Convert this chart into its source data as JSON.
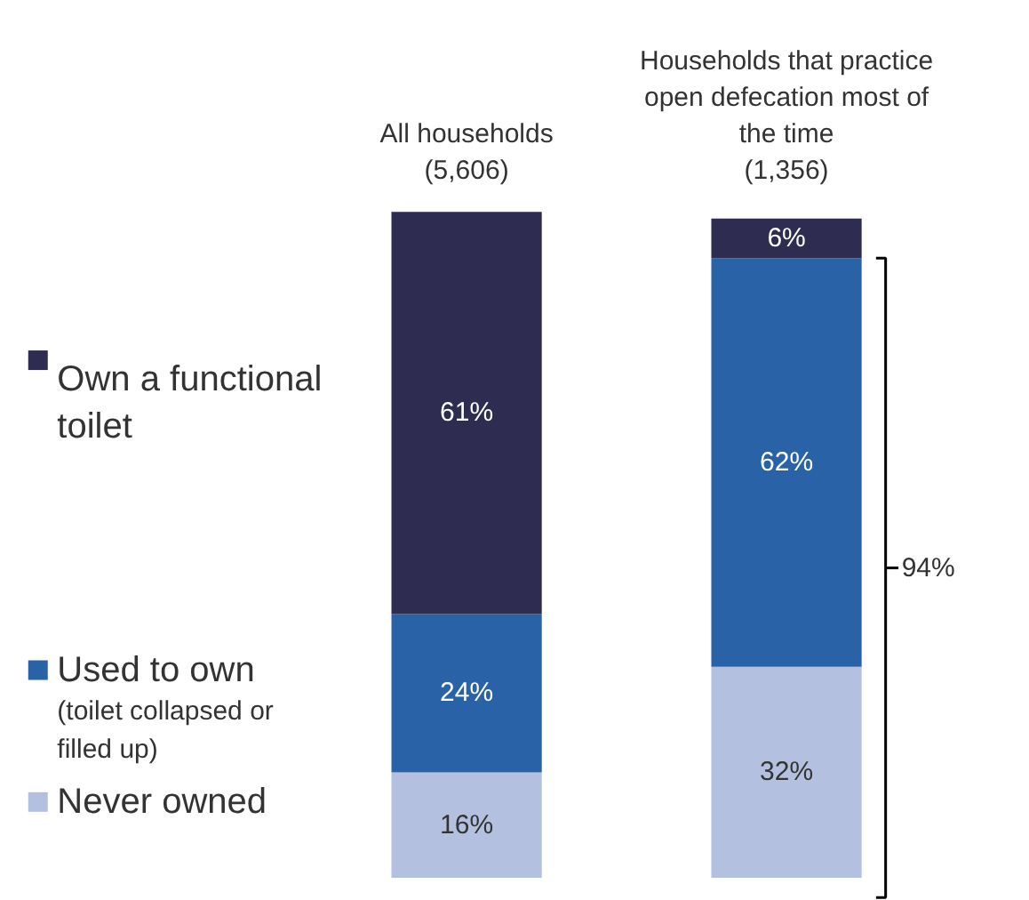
{
  "chart_data": {
    "type": "bar",
    "stacked": true,
    "categories": [
      "All households (5,606)",
      "Households that practice open defecation most of the time (1,356)"
    ],
    "series": [
      {
        "name": "Never owned",
        "color": "#b4c0e0",
        "values": [
          16,
          32
        ],
        "value_labels": [
          "16%",
          "32%"
        ]
      },
      {
        "name": "Used to own (toilet collapsed or filled up)",
        "color": "#2a62a8",
        "values": [
          24,
          62
        ],
        "value_labels": [
          "24%",
          "62%"
        ]
      },
      {
        "name": "Own a functional toilet",
        "color": "#2e2c50",
        "values": [
          61,
          6
        ],
        "value_labels": [
          "61%",
          "6%"
        ]
      }
    ],
    "legend": "left",
    "annotations": [
      "94%"
    ]
  }
}
